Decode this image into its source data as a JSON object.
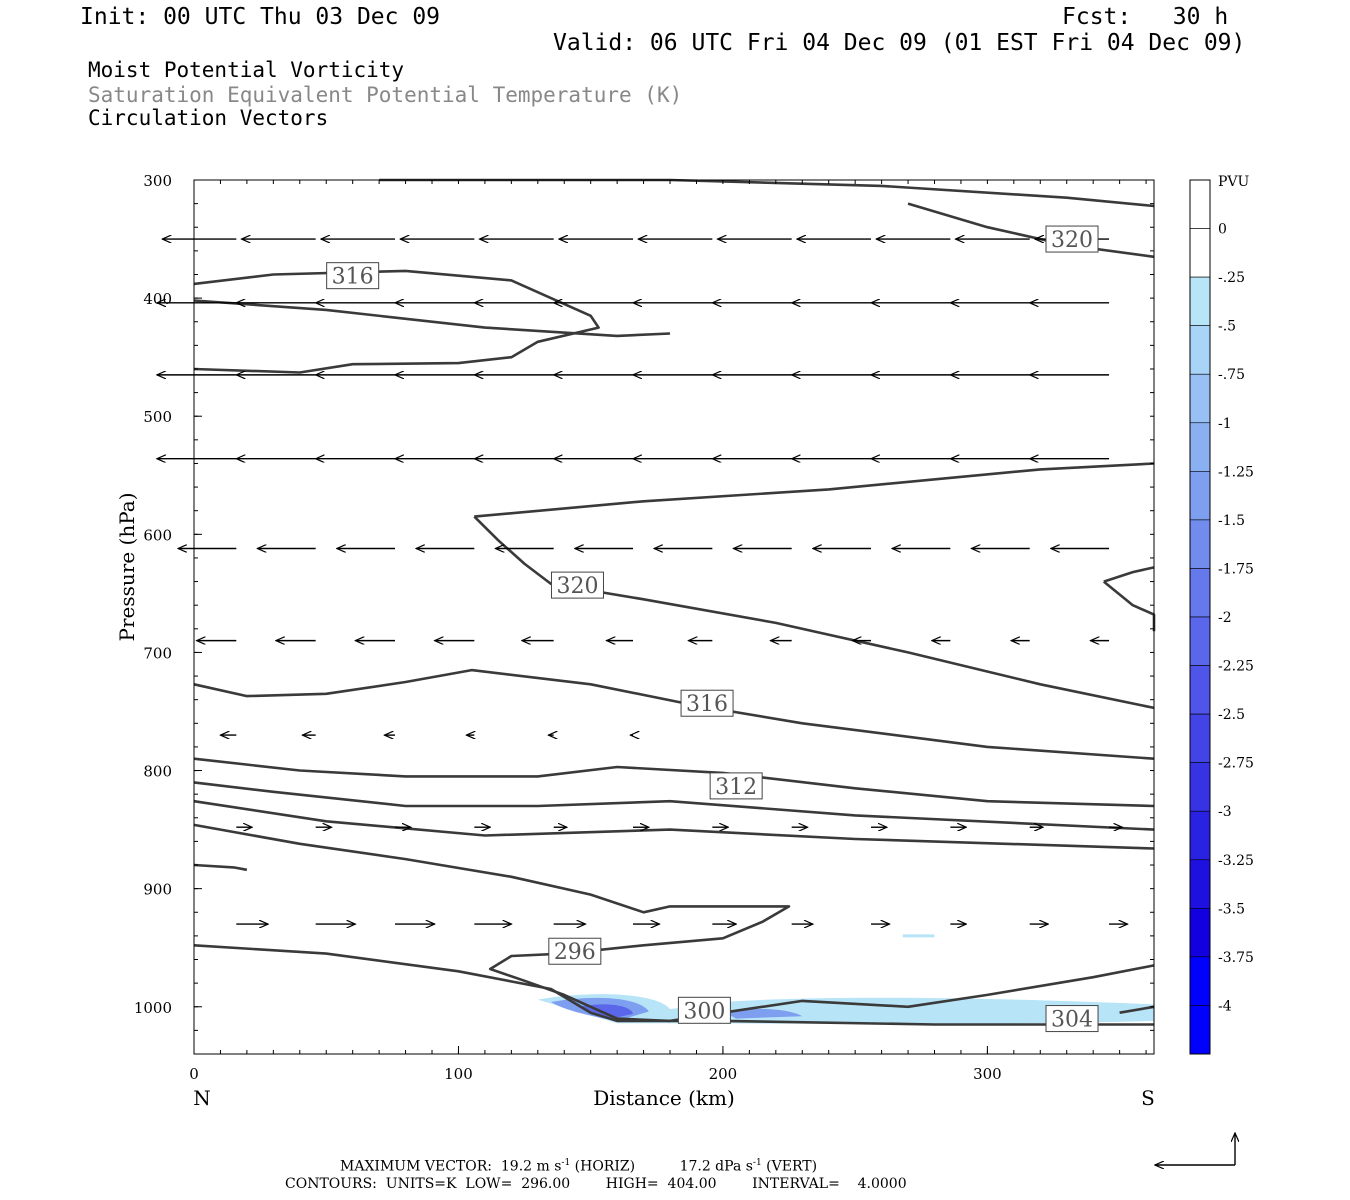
{
  "header": {
    "init": "Init: 00 UTC Thu 03 Dec 09",
    "fcst": "Fcst:   30 h",
    "valid": "Valid: 06 UTC Fri 04 Dec 09 (01 EST Fri 04 Dec 09)",
    "titles": [
      "Moist Potential Vorticity",
      "Saturation Equivalent Potential Temperature (K)",
      "Circulation Vectors"
    ]
  },
  "footer": {
    "max_vector_prefix": "MAXIMUM VECTOR:  19.2 m s",
    "max_vector_mid": " (HORIZ)          17.2 dPa s",
    "max_vector_suffix": " (VERT)",
    "exponent": "-1",
    "contours": "CONTOURS:  UNITS=K  LOW=  296.00        HIGH=  404.00        INTERVAL=    4.0000"
  },
  "colors": {
    "contour": "#3a3a3a",
    "pv_scale": [
      "#ffffff",
      "#ffffff",
      "#b8e4f8",
      "#a8d4f8",
      "#98c0f5",
      "#8ab0f2",
      "#7e9ff0",
      "#728cee",
      "#6679ec",
      "#5a67ea",
      "#4e55e8",
      "#4244e6",
      "#3633e4",
      "#2a22e2",
      "#1e11e0",
      "#1200de",
      "#0000ff"
    ]
  },
  "chart_data": {
    "type": "cross-section",
    "xlabel": "Distance (km)",
    "ylabel": "Pressure (hPa)",
    "xlim": [
      0,
      363
    ],
    "ylim": [
      1040,
      300
    ],
    "x_ticks": [
      0,
      100,
      200,
      300
    ],
    "y_ticks": [
      300,
      400,
      500,
      600,
      700,
      800,
      900,
      1000
    ],
    "x_end_labels": {
      "left": "N",
      "right": "S"
    },
    "colorbar": {
      "title": "PVU",
      "levels": [
        0.25,
        0,
        -0.25,
        -0.5,
        -0.75,
        -1,
        -1.25,
        -1.5,
        -1.75,
        -2,
        -2.25,
        -2.5,
        -2.75,
        -3,
        -3.25,
        -3.5,
        -3.75,
        -4,
        -4.25
      ],
      "labels": [
        "0",
        "-.25",
        "-.5",
        "-.75",
        "-1",
        "-1.25",
        "-1.5",
        "-1.75",
        "-2",
        "-2.25",
        "-2.5",
        "-2.75",
        "-3",
        "-3.25",
        "-3.5",
        "-3.75",
        "-4"
      ]
    },
    "theta_es_contours": [
      {
        "points": [
          [
            70,
            300
          ],
          [
            180,
            300
          ],
          [
            260,
            305
          ],
          [
            330,
            315
          ],
          [
            363,
            322
          ]
        ]
      },
      {
        "points": [
          [
            270,
            320
          ],
          [
            300,
            340
          ],
          [
            330,
            355
          ],
          [
            363,
            365
          ]
        ]
      },
      {
        "points": [
          [
            0,
            388
          ],
          [
            30,
            380
          ],
          [
            80,
            377
          ],
          [
            120,
            385
          ],
          [
            150,
            415
          ],
          [
            153,
            425
          ],
          [
            130,
            437
          ],
          [
            120,
            450
          ],
          [
            100,
            455
          ],
          [
            60,
            456
          ],
          [
            40,
            463
          ],
          [
            0,
            460
          ]
        ]
      },
      {
        "points": [
          [
            0,
            402
          ],
          [
            50,
            410
          ],
          [
            110,
            425
          ],
          [
            160,
            432
          ],
          [
            180,
            430
          ]
        ]
      },
      {
        "points": [
          [
            106,
            585
          ],
          [
            170,
            572
          ],
          [
            240,
            562
          ],
          [
            320,
            545
          ],
          [
            363,
            540
          ]
        ]
      },
      {
        "points": [
          [
            106,
            585
          ],
          [
            115,
            605
          ],
          [
            125,
            625
          ],
          [
            135,
            642
          ],
          [
            170,
            655
          ],
          [
            220,
            675
          ],
          [
            270,
            700
          ],
          [
            320,
            727
          ],
          [
            363,
            747
          ]
        ]
      },
      {
        "points": [
          [
            344,
            640
          ],
          [
            355,
            632
          ],
          [
            363,
            628
          ]
        ]
      },
      {
        "points": [
          [
            344,
            640
          ],
          [
            355,
            660
          ],
          [
            363,
            668
          ],
          [
            363,
            682
          ]
        ]
      },
      {
        "points": [
          [
            0,
            727
          ],
          [
            20,
            737
          ],
          [
            50,
            735
          ],
          [
            80,
            725
          ],
          [
            105,
            715
          ],
          [
            150,
            727
          ],
          [
            190,
            745
          ],
          [
            230,
            760
          ],
          [
            300,
            780
          ],
          [
            363,
            790
          ]
        ]
      },
      {
        "points": [
          [
            0,
            790
          ],
          [
            40,
            800
          ],
          [
            80,
            805
          ],
          [
            130,
            805
          ],
          [
            160,
            797
          ],
          [
            200,
            802
          ],
          [
            250,
            815
          ],
          [
            300,
            826
          ],
          [
            363,
            830
          ]
        ]
      },
      {
        "points": [
          [
            0,
            810
          ],
          [
            30,
            818
          ],
          [
            80,
            830
          ],
          [
            130,
            830
          ],
          [
            180,
            826
          ],
          [
            250,
            838
          ],
          [
            363,
            850
          ]
        ]
      },
      {
        "points": [
          [
            0,
            826
          ],
          [
            50,
            843
          ],
          [
            110,
            855
          ],
          [
            180,
            850
          ],
          [
            250,
            858
          ],
          [
            363,
            866
          ]
        ]
      },
      {
        "points": [
          [
            0,
            846
          ],
          [
            40,
            862
          ],
          [
            80,
            875
          ],
          [
            120,
            890
          ],
          [
            150,
            905
          ],
          [
            170,
            920
          ],
          [
            180,
            915
          ],
          [
            210,
            915
          ],
          [
            225,
            915
          ],
          [
            215,
            928
          ],
          [
            200,
            942
          ],
          [
            170,
            948
          ],
          [
            140,
            955
          ],
          [
            120,
            957
          ],
          [
            112,
            968
          ],
          [
            125,
            978
          ],
          [
            140,
            990
          ],
          [
            150,
            1000
          ],
          [
            160,
            1010
          ],
          [
            180,
            1012
          ],
          [
            200,
            1005
          ],
          [
            230,
            995
          ],
          [
            270,
            1000
          ],
          [
            300,
            990
          ],
          [
            340,
            975
          ],
          [
            363,
            965
          ]
        ]
      },
      {
        "points": [
          [
            0,
            880
          ],
          [
            15,
            882
          ],
          [
            20,
            884
          ]
        ]
      },
      {
        "points": [
          [
            0,
            948
          ],
          [
            50,
            955
          ],
          [
            100,
            970
          ],
          [
            135,
            985
          ],
          [
            150,
            1005
          ],
          [
            160,
            1012
          ],
          [
            200,
            1012
          ],
          [
            280,
            1015
          ],
          [
            363,
            1015
          ]
        ]
      },
      {
        "points": [
          [
            350,
            1005
          ],
          [
            363,
            1000
          ]
        ]
      }
    ],
    "contour_labels": [
      {
        "text": "316",
        "x": 60,
        "p": 381
      },
      {
        "text": "320",
        "x": 332,
        "p": 350
      },
      {
        "text": "320",
        "x": 145,
        "p": 643
      },
      {
        "text": "316",
        "x": 194,
        "p": 743
      },
      {
        "text": "312",
        "x": 205,
        "p": 813
      },
      {
        "text": "296",
        "x": 144,
        "p": 953
      },
      {
        "text": "300",
        "x": 193,
        "p": 1003
      },
      {
        "text": "304",
        "x": 332,
        "p": 1010
      }
    ],
    "vectors": [
      {
        "p": 350,
        "y1": 350,
        "x": [
          0,
          30,
          60,
          90,
          120,
          150,
          180,
          210,
          240,
          270,
          300,
          330
        ],
        "dx": [
          -28,
          -28,
          -28,
          -28,
          -28,
          -28,
          -28,
          -28,
          -28,
          -28,
          -28,
          -28
        ],
        "dy": [
          0,
          0,
          0,
          0,
          0,
          0,
          0,
          0,
          0,
          0,
          0,
          0
        ]
      },
      {
        "p": 404,
        "x": [
          0,
          30,
          60,
          90,
          120,
          150,
          180,
          210,
          240,
          270,
          300,
          330
        ],
        "dx": [
          -30,
          -30,
          -30,
          -30,
          -30,
          -30,
          -30,
          -30,
          -30,
          -30,
          -30,
          -30
        ]
      },
      {
        "p": 465,
        "x": [
          0,
          30,
          60,
          90,
          120,
          150,
          180,
          210,
          240,
          270,
          300,
          330
        ],
        "dx": [
          -30,
          -30,
          -30,
          -30,
          -30,
          -30,
          -30,
          -30,
          -30,
          -30,
          -30,
          -30
        ]
      },
      {
        "p": 536,
        "x": [
          0,
          30,
          60,
          90,
          120,
          150,
          180,
          210,
          240,
          270,
          300,
          330
        ],
        "dx": [
          -30,
          -30,
          -30,
          -30,
          -30,
          -30,
          -30,
          -30,
          -30,
          -30,
          -30,
          -30
        ]
      },
      {
        "p": 612,
        "x": [
          0,
          30,
          60,
          90,
          120,
          150,
          180,
          210,
          240,
          270,
          300,
          330
        ],
        "dx": [
          -22,
          -22,
          -22,
          -22,
          -22,
          -22,
          -22,
          -22,
          -22,
          -22,
          -22,
          -22
        ]
      },
      {
        "p": 690,
        "x": [
          0,
          30,
          60,
          90,
          120,
          150,
          180,
          210,
          240,
          270,
          300,
          330
        ],
        "dx": [
          -15,
          -15,
          -15,
          -15,
          -12,
          -10,
          -9,
          -8,
          -7,
          -7,
          -7,
          -7
        ]
      },
      {
        "p": 770,
        "x": [
          0,
          30,
          60,
          90,
          120,
          150,
          180,
          210,
          240,
          270,
          300,
          330
        ],
        "dx": [
          -6,
          -5,
          -4,
          -3,
          -2,
          -1,
          0,
          0,
          0,
          0,
          0,
          0
        ]
      },
      {
        "p": 848,
        "x": [
          0,
          30,
          60,
          90,
          120,
          150,
          180,
          210,
          240,
          270,
          300,
          330
        ],
        "dx": [
          6,
          6,
          6,
          6,
          5,
          6,
          6,
          6,
          6,
          6,
          5,
          5
        ]
      },
      {
        "p": 930,
        "x": [
          0,
          30,
          60,
          90,
          120,
          150,
          180,
          210,
          240,
          270,
          300,
          330
        ],
        "dx": [
          12,
          15,
          15,
          14,
          12,
          10,
          9,
          8,
          7,
          6,
          7,
          7
        ]
      }
    ]
  }
}
